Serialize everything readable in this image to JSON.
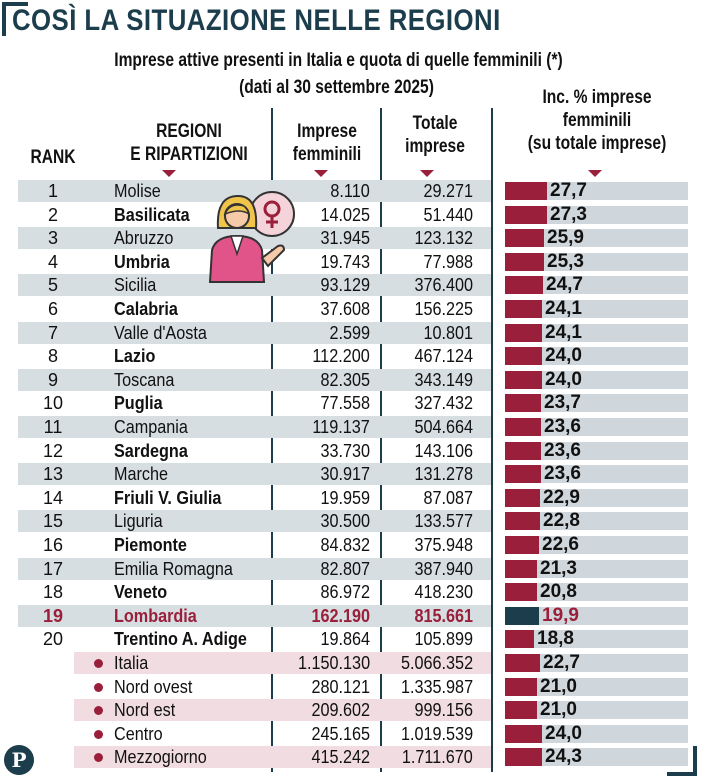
{
  "title": "COSÌ LA SITUAZIONE NELLE REGIONI",
  "subtitle_line1": "Imprese attive presenti in Italia e quota di quelle femminili (*)",
  "subtitle_line2": "(dati al 30 settembre 2025)",
  "headers": {
    "rank": "RANK",
    "region_l1": "REGIONI",
    "region_l2": "E RIPARTIZIONI",
    "femm_l1": "Imprese",
    "femm_l2": "femminili",
    "tot_l1": "Totale",
    "tot_l2": "imprese",
    "pct_l1": "Inc. % imprese",
    "pct_l2": "femminili",
    "pct_l3": "(su totale imprese)"
  },
  "logo_letter": "P",
  "colors": {
    "bar": "#9a1f3a",
    "bar_highlight": "#1c3d4c",
    "stripe_gray": "#d6dee2",
    "stripe_pink": "#f1dde1",
    "highlight_text": "#9a1f3a",
    "bar_track": "#d0d7dc"
  },
  "chart_data": {
    "type": "table",
    "title": "COSÌ LA SITUAZIONE NELLE REGIONI",
    "columns": [
      "Rank",
      "Regioni e ripartizioni",
      "Imprese femminili",
      "Totale imprese",
      "Inc. % imprese femminili (su totale imprese)"
    ],
    "ylim": [
      0,
      30
    ],
    "highlight_region": "Lombardia",
    "rows": [
      {
        "rank": "1",
        "name": "Molise",
        "femm": "8.110",
        "tot": "29.271",
        "pct": "27,7",
        "value": 27.7,
        "kind": "region"
      },
      {
        "rank": "2",
        "name": "Basilicata",
        "femm": "14.025",
        "tot": "51.440",
        "pct": "27,3",
        "value": 27.3,
        "kind": "region"
      },
      {
        "rank": "3",
        "name": "Abruzzo",
        "femm": "31.945",
        "tot": "123.132",
        "pct": "25,9",
        "value": 25.9,
        "kind": "region"
      },
      {
        "rank": "4",
        "name": "Umbria",
        "femm": "19.743",
        "tot": "77.988",
        "pct": "25,3",
        "value": 25.3,
        "kind": "region"
      },
      {
        "rank": "5",
        "name": "Sicilia",
        "femm": "93.129",
        "tot": "376.400",
        "pct": "24,7",
        "value": 24.7,
        "kind": "region"
      },
      {
        "rank": "6",
        "name": "Calabria",
        "femm": "37.608",
        "tot": "156.225",
        "pct": "24,1",
        "value": 24.1,
        "kind": "region"
      },
      {
        "rank": "7",
        "name": "Valle d'Aosta",
        "femm": "2.599",
        "tot": "10.801",
        "pct": "24,1",
        "value": 24.1,
        "kind": "region"
      },
      {
        "rank": "8",
        "name": "Lazio",
        "femm": "112.200",
        "tot": "467.124",
        "pct": "24,0",
        "value": 24.0,
        "kind": "region"
      },
      {
        "rank": "9",
        "name": "Toscana",
        "femm": "82.305",
        "tot": "343.149",
        "pct": "24,0",
        "value": 24.0,
        "kind": "region"
      },
      {
        "rank": "10",
        "name": "Puglia",
        "femm": "77.558",
        "tot": "327.432",
        "pct": "23,7",
        "value": 23.7,
        "kind": "region"
      },
      {
        "rank": "11",
        "name": "Campania",
        "femm": "119.137",
        "tot": "504.664",
        "pct": "23,6",
        "value": 23.6,
        "kind": "region"
      },
      {
        "rank": "12",
        "name": "Sardegna",
        "femm": "33.730",
        "tot": "143.106",
        "pct": "23,6",
        "value": 23.6,
        "kind": "region"
      },
      {
        "rank": "13",
        "name": "Marche",
        "femm": "30.917",
        "tot": "131.278",
        "pct": "23,6",
        "value": 23.6,
        "kind": "region"
      },
      {
        "rank": "14",
        "name": "Friuli V. Giulia",
        "femm": "19.959",
        "tot": "87.087",
        "pct": "22,9",
        "value": 22.9,
        "kind": "region"
      },
      {
        "rank": "15",
        "name": "Liguria",
        "femm": "30.500",
        "tot": "133.577",
        "pct": "22,8",
        "value": 22.8,
        "kind": "region"
      },
      {
        "rank": "16",
        "name": "Piemonte",
        "femm": "84.832",
        "tot": "375.948",
        "pct": "22,6",
        "value": 22.6,
        "kind": "region"
      },
      {
        "rank": "17",
        "name": "Emilia Romagna",
        "femm": "82.807",
        "tot": "387.940",
        "pct": "21,3",
        "value": 21.3,
        "kind": "region"
      },
      {
        "rank": "18",
        "name": "Veneto",
        "femm": "86.972",
        "tot": "418.230",
        "pct": "20,8",
        "value": 20.8,
        "kind": "region"
      },
      {
        "rank": "19",
        "name": "Lombardia",
        "femm": "162.190",
        "tot": "815.661",
        "pct": "19,9",
        "value": 19.9,
        "kind": "highlight"
      },
      {
        "rank": "20",
        "name": "Trentino A. Adige",
        "femm": "19.864",
        "tot": "105.899",
        "pct": "18,8",
        "value": 18.8,
        "kind": "region"
      },
      {
        "rank": "",
        "name": "Italia",
        "femm": "1.150.130",
        "tot": "5.066.352",
        "pct": "22,7",
        "value": 22.7,
        "kind": "area"
      },
      {
        "rank": "",
        "name": "Nord ovest",
        "femm": "280.121",
        "tot": "1.335.987",
        "pct": "21,0",
        "value": 21.0,
        "kind": "area"
      },
      {
        "rank": "",
        "name": "Nord est",
        "femm": "209.602",
        "tot": "999.156",
        "pct": "21,0",
        "value": 21.0,
        "kind": "area"
      },
      {
        "rank": "",
        "name": "Centro",
        "femm": "245.165",
        "tot": "1.019.539",
        "pct": "24,0",
        "value": 24.0,
        "kind": "area"
      },
      {
        "rank": "",
        "name": "Mezzogiorno",
        "femm": "415.242",
        "tot": "1.711.670",
        "pct": "24,3",
        "value": 24.3,
        "kind": "area"
      }
    ]
  }
}
